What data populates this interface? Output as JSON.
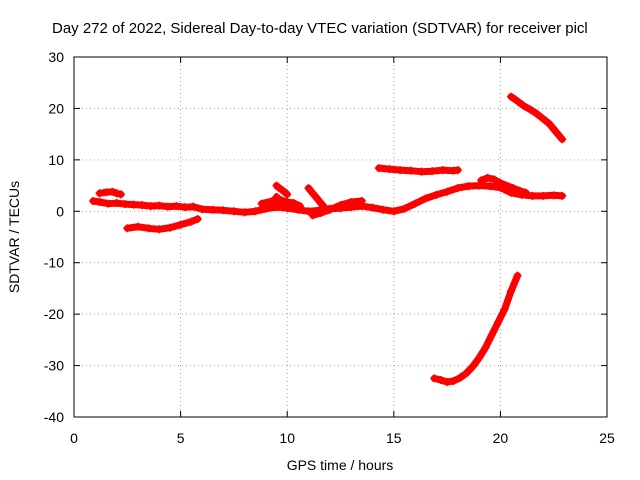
{
  "chart_data": {
    "type": "scatter",
    "title": "Day 272 of 2022, Sidereal Day-to-day VTEC variation (SDTVAR) for receiver picl",
    "xlabel": "GPS time / hours",
    "ylabel": "SDTVAR / TECUs",
    "xlim": [
      0,
      25
    ],
    "ylim": [
      -40,
      30
    ],
    "xticks": [
      "0",
      "5",
      "10",
      "15",
      "20",
      "25"
    ],
    "yticks": [
      "-40",
      "-30",
      "-20",
      "-10",
      "0",
      "10",
      "20",
      "30"
    ],
    "grid": true,
    "legend": false,
    "marker": "plus",
    "color": "#ff0000",
    "series": [
      {
        "x": [
          0.9,
          1.2,
          1.6,
          2.0,
          2.4,
          2.8,
          3.2,
          3.6,
          4.0,
          4.4,
          4.8,
          5.2,
          5.6,
          6.0,
          6.5,
          7.0,
          7.5,
          8.0,
          8.5,
          9.0,
          9.5,
          10.0,
          10.5,
          11.0,
          11.5,
          12.0,
          12.5,
          13.0,
          13.5,
          14.0,
          14.5,
          15.0,
          15.5,
          16.0,
          16.5,
          17.0,
          17.5,
          18.0,
          18.5,
          19.0,
          19.5,
          20.0,
          20.5,
          21.0,
          21.5,
          22.0,
          22.5,
          22.9
        ],
        "y": [
          2.0,
          1.8,
          1.5,
          1.6,
          1.4,
          1.3,
          1.2,
          1.0,
          1.1,
          0.9,
          1.0,
          0.8,
          0.9,
          0.4,
          0.3,
          0.2,
          0.0,
          -0.2,
          0.0,
          0.5,
          0.8,
          0.6,
          0.3,
          0.0,
          0.2,
          0.5,
          0.6,
          0.8,
          1.0,
          0.7,
          0.3,
          0.0,
          0.5,
          1.5,
          2.5,
          3.2,
          3.8,
          4.5,
          4.9,
          5.0,
          4.9,
          4.6,
          3.6,
          3.2,
          3.0,
          3.0,
          3.1,
          3.0
        ]
      },
      {
        "x": [
          1.2,
          1.5,
          1.8,
          2.0,
          2.2
        ],
        "y": [
          3.5,
          3.7,
          3.8,
          3.5,
          3.3
        ]
      },
      {
        "x": [
          9.5,
          9.7,
          10.0,
          10.2,
          10.4,
          10.6
        ],
        "y": [
          2.8,
          2.0,
          1.2,
          0.8,
          0.5,
          0.3
        ]
      },
      {
        "x": [
          8.8,
          9.3,
          9.7,
          10.0,
          10.3,
          10.6
        ],
        "y": [
          1.5,
          2.0,
          2.2,
          1.8,
          1.6,
          1.0
        ]
      },
      {
        "x": [
          9.5,
          9.6,
          9.8,
          10.0
        ],
        "y": [
          5.0,
          4.6,
          4.0,
          3.3
        ]
      },
      {
        "x": [
          11.0,
          11.2,
          11.4,
          11.6,
          11.8
        ],
        "y": [
          4.5,
          3.5,
          2.5,
          1.5,
          0.5
        ]
      },
      {
        "x": [
          11.2,
          11.6,
          12.0,
          12.5,
          13.0,
          13.5
        ],
        "y": [
          -0.8,
          -0.3,
          0.3,
          1.2,
          1.8,
          2.0
        ]
      },
      {
        "x": [
          2.5,
          3.0,
          3.5,
          4.0,
          4.5,
          5.0,
          5.5,
          5.8
        ],
        "y": [
          -3.3,
          -3.0,
          -3.3,
          -3.5,
          -3.2,
          -2.6,
          -2.0,
          -1.5
        ]
      },
      {
        "x": [
          14.3,
          14.8,
          15.3,
          15.8,
          16.3,
          16.8,
          17.3,
          17.8,
          18.0
        ],
        "y": [
          8.4,
          8.2,
          8.0,
          7.9,
          7.7,
          7.8,
          8.0,
          7.9,
          8.0
        ]
      },
      {
        "x": [
          20.5,
          20.8,
          21.1,
          21.4,
          21.7,
          22.0,
          22.3,
          22.6,
          22.9
        ],
        "y": [
          22.3,
          21.4,
          20.5,
          19.8,
          19.0,
          18.0,
          17.0,
          15.5,
          14.0
        ]
      },
      {
        "x": [
          16.9,
          17.2,
          17.5,
          17.8,
          18.1,
          18.4,
          18.7,
          19.0,
          19.3,
          19.6,
          19.9,
          20.2,
          20.5,
          20.8
        ],
        "y": [
          -32.5,
          -32.8,
          -33.2,
          -33.0,
          -32.4,
          -31.5,
          -30.2,
          -28.5,
          -26.5,
          -24.0,
          -21.5,
          -19.0,
          -15.5,
          -12.5
        ]
      },
      {
        "x": [
          19.1,
          19.4,
          19.7,
          20.0,
          20.3,
          20.6,
          20.9,
          21.2
        ],
        "y": [
          6.0,
          6.5,
          6.2,
          5.5,
          5.0,
          4.5,
          4.0,
          3.6
        ]
      }
    ]
  }
}
